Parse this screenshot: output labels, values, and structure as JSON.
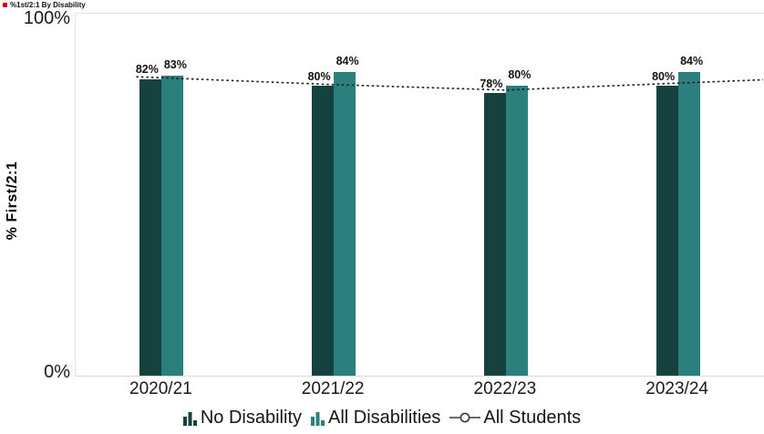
{
  "title": {
    "text": "%1st/2:1 By Disability",
    "bullet_color": "#cc0000"
  },
  "y_axis": {
    "title": "% First/2:1",
    "ticks": [
      "100%",
      "0%"
    ]
  },
  "chart_data": {
    "type": "bar",
    "title": "%1st/2:1 By Disability",
    "categories": [
      "2020/21",
      "2021/22",
      "2022/23",
      "2023/24"
    ],
    "series": [
      {
        "name": "No Disability",
        "type": "bar",
        "color": "#15413e",
        "values": [
          82,
          80,
          78,
          80
        ]
      },
      {
        "name": "All Disabilities",
        "type": "bar",
        "color": "#2b807e",
        "values": [
          83,
          84,
          80,
          84
        ]
      },
      {
        "name": "All Students",
        "type": "line",
        "line_style": "dotted",
        "color": "#1a1a1a",
        "values": [
          82.3,
          80.4,
          78.9,
          80.8
        ]
      }
    ],
    "ylabel": "% First/2:1",
    "ylim": [
      0,
      100
    ],
    "y_tick_labels": [
      "0%",
      "100%"
    ],
    "bar_value_labels": true,
    "grid": false,
    "legend_position": "bottom"
  },
  "legend": {
    "items": [
      {
        "label": "No Disability",
        "icon": "bar-chart-icon",
        "color": "#15413e"
      },
      {
        "label": "All Disabilities",
        "icon": "bar-chart-icon",
        "color": "#2b807e"
      },
      {
        "label": "All Students",
        "icon": "line-circle-icon",
        "color": "#1a1a1a"
      }
    ]
  }
}
